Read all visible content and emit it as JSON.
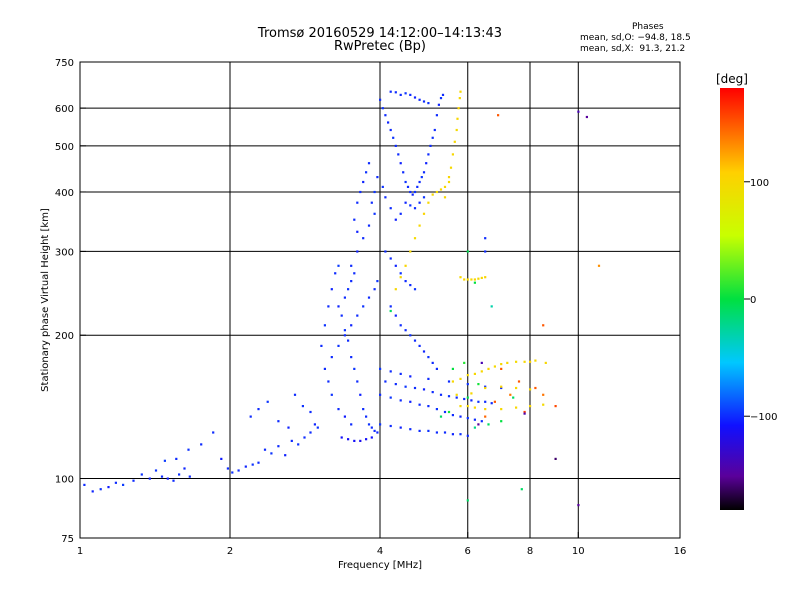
{
  "title_line1": "Tromsø 20160529 14:12:00–14:13:43",
  "title_line2": "RwPretec (Bp)",
  "stats": {
    "heading": "Phases",
    "o_line": "mean, sd,O: −94.8, 18.5",
    "x_line": "mean, sd,X:  91.3, 21.2"
  },
  "colorbar": {
    "label": "[deg]",
    "ticks": [
      {
        "value": 100,
        "label": "100"
      },
      {
        "value": 0,
        "label": "0"
      },
      {
        "value": -100,
        "label": "−100"
      }
    ],
    "range": [
      -180,
      180
    ]
  },
  "chart_data": {
    "type": "scatter",
    "xlabel": "Frequency [MHz]",
    "ylabel": "Stationary phase Virtual Height [km]",
    "xscale": "log",
    "yscale": "log",
    "xlim": [
      1,
      16
    ],
    "ylim": [
      75,
      750
    ],
    "xticks": [
      {
        "value": 1,
        "label": "1"
      },
      {
        "value": 2,
        "label": "2"
      },
      {
        "value": 4,
        "label": "4"
      },
      {
        "value": 6,
        "label": "6"
      },
      {
        "value": 8,
        "label": "8"
      },
      {
        "value": 10,
        "label": "10"
      },
      {
        "value": 16,
        "label": "16"
      }
    ],
    "yticks": [
      {
        "value": 75,
        "label": "75"
      },
      {
        "value": 100,
        "label": "100"
      },
      {
        "value": 200,
        "label": "200"
      },
      {
        "value": 300,
        "label": "300"
      },
      {
        "value": 400,
        "label": "400"
      },
      {
        "value": 500,
        "label": "500"
      },
      {
        "value": 600,
        "label": "600"
      },
      {
        "value": 750,
        "label": "750"
      }
    ],
    "grid_x": [
      2,
      4,
      6,
      8,
      10
    ],
    "grid_y": [
      100,
      200,
      300,
      400,
      500,
      600
    ],
    "points_columns": [
      "frequency_mhz",
      "height_km",
      "phase_deg"
    ],
    "points": [
      [
        1.02,
        97,
        -100
      ],
      [
        1.06,
        94,
        -102
      ],
      [
        1.1,
        95,
        -98
      ],
      [
        1.14,
        96,
        -105
      ],
      [
        1.18,
        98,
        -100
      ],
      [
        1.22,
        97,
        -95
      ],
      [
        1.28,
        99,
        -100
      ],
      [
        1.33,
        102,
        -98
      ],
      [
        1.38,
        100,
        -103
      ],
      [
        1.42,
        104,
        -97
      ],
      [
        1.46,
        101,
        -100
      ],
      [
        1.5,
        100,
        -105
      ],
      [
        1.54,
        99,
        -100
      ],
      [
        1.58,
        102,
        -98
      ],
      [
        1.62,
        105,
        -102
      ],
      [
        1.66,
        101,
        -100
      ],
      [
        1.48,
        109,
        -95
      ],
      [
        1.56,
        110,
        -100
      ],
      [
        1.65,
        115,
        -98
      ],
      [
        1.75,
        118,
        -100
      ],
      [
        1.85,
        125,
        -100
      ],
      [
        1.92,
        110,
        -105
      ],
      [
        1.98,
        105,
        -100
      ],
      [
        2.02,
        103,
        -98
      ],
      [
        2.08,
        104,
        -100
      ],
      [
        2.15,
        106,
        -102
      ],
      [
        2.22,
        107,
        -98
      ],
      [
        2.28,
        108,
        -100
      ],
      [
        2.35,
        115,
        -100
      ],
      [
        2.42,
        113,
        -97
      ],
      [
        2.5,
        117,
        -100
      ],
      [
        2.58,
        112,
        -103
      ],
      [
        2.66,
        120,
        -100
      ],
      [
        2.74,
        118,
        -98
      ],
      [
        2.82,
        122,
        -100
      ],
      [
        2.9,
        125,
        -100
      ],
      [
        2.96,
        130,
        -102
      ],
      [
        3.0,
        128,
        -98
      ],
      [
        2.2,
        135,
        -100
      ],
      [
        2.28,
        140,
        -100
      ],
      [
        2.38,
        145,
        -97
      ],
      [
        2.5,
        132,
        -100
      ],
      [
        2.62,
        128,
        -103
      ],
      [
        2.7,
        150,
        -100
      ],
      [
        2.8,
        142,
        -98
      ],
      [
        2.9,
        138,
        -100
      ],
      [
        3.05,
        190,
        -100
      ],
      [
        3.1,
        210,
        -98
      ],
      [
        3.15,
        230,
        -100
      ],
      [
        3.2,
        250,
        -102
      ],
      [
        3.25,
        270,
        -100
      ],
      [
        3.3,
        280,
        -95
      ],
      [
        3.1,
        170,
        -100
      ],
      [
        3.15,
        160,
        -100
      ],
      [
        3.2,
        150,
        -98
      ],
      [
        3.3,
        140,
        -100
      ],
      [
        3.4,
        135,
        -105
      ],
      [
        3.5,
        130,
        -100
      ],
      [
        3.35,
        122,
        -110
      ],
      [
        3.45,
        121,
        -112
      ],
      [
        3.55,
        120,
        -110
      ],
      [
        3.65,
        120,
        -115
      ],
      [
        3.75,
        121,
        -110
      ],
      [
        3.85,
        122,
        -108
      ],
      [
        3.2,
        180,
        -100
      ],
      [
        3.3,
        190,
        -98
      ],
      [
        3.4,
        200,
        -100
      ],
      [
        3.5,
        210,
        -102
      ],
      [
        3.6,
        220,
        -100
      ],
      [
        3.7,
        230,
        -98
      ],
      [
        3.8,
        240,
        -100
      ],
      [
        3.9,
        250,
        -100
      ],
      [
        3.95,
        260,
        -97
      ],
      [
        3.5,
        280,
        -100
      ],
      [
        3.6,
        300,
        -103
      ],
      [
        3.7,
        320,
        -100
      ],
      [
        3.8,
        340,
        -100
      ],
      [
        3.9,
        360,
        -98
      ],
      [
        3.6,
        380,
        -100
      ],
      [
        3.65,
        400,
        -100
      ],
      [
        3.7,
        420,
        -102
      ],
      [
        3.75,
        440,
        -98
      ],
      [
        3.8,
        460,
        -100
      ],
      [
        3.85,
        380,
        -100
      ],
      [
        3.9,
        400,
        -97
      ],
      [
        3.95,
        430,
        -100
      ],
      [
        3.55,
        350,
        -100
      ],
      [
        3.6,
        330,
        -103
      ],
      [
        3.4,
        240,
        -100
      ],
      [
        3.45,
        250,
        -98
      ],
      [
        3.5,
        260,
        -100
      ],
      [
        3.55,
        270,
        -100
      ],
      [
        3.3,
        230,
        -102
      ],
      [
        3.35,
        220,
        -100
      ],
      [
        3.4,
        205,
        -98
      ],
      [
        3.45,
        195,
        -100
      ],
      [
        3.5,
        180,
        -100
      ],
      [
        3.55,
        170,
        -97
      ],
      [
        3.6,
        160,
        -100
      ],
      [
        3.65,
        150,
        -103
      ],
      [
        3.7,
        140,
        -100
      ],
      [
        3.75,
        135,
        -100
      ],
      [
        3.8,
        130,
        -98
      ],
      [
        3.85,
        128,
        -100
      ],
      [
        3.9,
        126,
        -100
      ],
      [
        3.95,
        125,
        -102
      ],
      [
        4.0,
        625,
        -100
      ],
      [
        4.05,
        600,
        -98
      ],
      [
        4.1,
        580,
        -100
      ],
      [
        4.15,
        560,
        -102
      ],
      [
        4.2,
        540,
        -100
      ],
      [
        4.25,
        520,
        -97
      ],
      [
        4.3,
        500,
        -100
      ],
      [
        4.35,
        480,
        -100
      ],
      [
        4.4,
        460,
        -103
      ],
      [
        4.45,
        440,
        -100
      ],
      [
        4.5,
        420,
        -98
      ],
      [
        4.55,
        410,
        -100
      ],
      [
        4.6,
        400,
        -100
      ],
      [
        4.65,
        395,
        -102
      ],
      [
        4.7,
        400,
        -98
      ],
      [
        4.75,
        410,
        -100
      ],
      [
        4.8,
        420,
        -100
      ],
      [
        4.85,
        430,
        -97
      ],
      [
        4.9,
        440,
        -100
      ],
      [
        4.95,
        460,
        -103
      ],
      [
        5.0,
        480,
        -100
      ],
      [
        5.05,
        500,
        -100
      ],
      [
        5.1,
        520,
        -98
      ],
      [
        5.15,
        540,
        -100
      ],
      [
        5.2,
        580,
        -100
      ],
      [
        5.25,
        610,
        -102
      ],
      [
        5.3,
        630,
        -98
      ],
      [
        5.35,
        640,
        -100
      ],
      [
        4.4,
        640,
        -100
      ],
      [
        4.5,
        645,
        -97
      ],
      [
        4.6,
        640,
        -100
      ],
      [
        4.7,
        632,
        -103
      ],
      [
        4.8,
        625,
        -100
      ],
      [
        4.9,
        620,
        -100
      ],
      [
        5.0,
        615,
        -98
      ],
      [
        4.2,
        650,
        -100
      ],
      [
        4.3,
        648,
        -100
      ],
      [
        4.5,
        380,
        -102
      ],
      [
        4.6,
        375,
        -98
      ],
      [
        4.7,
        370,
        -100
      ],
      [
        4.8,
        380,
        -100
      ],
      [
        4.9,
        390,
        -97
      ],
      [
        4.4,
        360,
        -100
      ],
      [
        4.3,
        350,
        -103
      ],
      [
        4.2,
        370,
        -100
      ],
      [
        4.1,
        390,
        -100
      ],
      [
        4.05,
        410,
        -98
      ],
      [
        4.1,
        300,
        -100
      ],
      [
        4.2,
        290,
        -100
      ],
      [
        4.3,
        280,
        -102
      ],
      [
        4.4,
        270,
        -98
      ],
      [
        4.5,
        260,
        -100
      ],
      [
        4.6,
        255,
        -100
      ],
      [
        4.7,
        250,
        -97
      ],
      [
        4.2,
        230,
        -100
      ],
      [
        4.3,
        220,
        -103
      ],
      [
        4.4,
        210,
        -100
      ],
      [
        4.5,
        205,
        -100
      ],
      [
        4.6,
        200,
        -98
      ],
      [
        4.7,
        195,
        -100
      ],
      [
        4.8,
        190,
        -100
      ],
      [
        4.9,
        185,
        -102
      ],
      [
        5.0,
        180,
        -98
      ],
      [
        5.1,
        175,
        -100
      ],
      [
        5.2,
        170,
        -100
      ],
      [
        4.0,
        150,
        -100
      ],
      [
        4.2,
        148,
        -97
      ],
      [
        4.4,
        146,
        -100
      ],
      [
        4.6,
        145,
        -103
      ],
      [
        4.8,
        143,
        -100
      ],
      [
        5.0,
        142,
        -100
      ],
      [
        5.2,
        140,
        -98
      ],
      [
        5.4,
        138,
        -100
      ],
      [
        5.6,
        136,
        -100
      ],
      [
        5.8,
        135,
        -102
      ],
      [
        6.0,
        134,
        -98
      ],
      [
        6.2,
        133,
        -100
      ],
      [
        6.4,
        132,
        -100
      ],
      [
        4.0,
        130,
        -97
      ],
      [
        4.2,
        129,
        -100
      ],
      [
        4.4,
        128,
        -103
      ],
      [
        4.6,
        127,
        -100
      ],
      [
        4.8,
        126,
        -100
      ],
      [
        5.0,
        126,
        -98
      ],
      [
        5.2,
        125,
        -100
      ],
      [
        5.4,
        125,
        -100
      ],
      [
        5.6,
        124,
        -102
      ],
      [
        5.8,
        124,
        -98
      ],
      [
        6.0,
        123,
        -100
      ],
      [
        4.1,
        160,
        -100
      ],
      [
        4.3,
        158,
        -100
      ],
      [
        4.5,
        156,
        -97
      ],
      [
        4.7,
        155,
        -100
      ],
      [
        4.9,
        154,
        -103
      ],
      [
        5.1,
        152,
        -100
      ],
      [
        5.3,
        150,
        -100
      ],
      [
        5.5,
        149,
        -98
      ],
      [
        5.7,
        148,
        -100
      ],
      [
        5.9,
        147,
        -100
      ],
      [
        6.1,
        146,
        -102
      ],
      [
        6.3,
        145,
        -98
      ],
      [
        6.5,
        145,
        -100
      ],
      [
        6.7,
        144,
        -100
      ],
      [
        4.0,
        170,
        -97
      ],
      [
        4.2,
        168,
        -100
      ],
      [
        4.4,
        166,
        -100
      ],
      [
        4.6,
        164,
        -103
      ],
      [
        5.0,
        162,
        -100
      ],
      [
        5.5,
        160,
        -100
      ],
      [
        6.0,
        158,
        -98
      ],
      [
        6.5,
        156,
        -100
      ],
      [
        7.0,
        155,
        -100
      ],
      [
        4.3,
        250,
        100
      ],
      [
        4.4,
        265,
        98
      ],
      [
        4.5,
        280,
        102
      ],
      [
        4.6,
        300,
        100
      ],
      [
        4.7,
        320,
        97
      ],
      [
        4.8,
        340,
        100
      ],
      [
        4.9,
        360,
        103
      ],
      [
        5.0,
        380,
        100
      ],
      [
        5.1,
        395,
        100
      ],
      [
        5.2,
        400,
        98
      ],
      [
        5.3,
        405,
        100
      ],
      [
        5.4,
        410,
        100
      ],
      [
        5.5,
        430,
        102
      ],
      [
        5.55,
        450,
        98
      ],
      [
        5.6,
        480,
        100
      ],
      [
        5.65,
        510,
        100
      ],
      [
        5.7,
        540,
        97
      ],
      [
        5.72,
        570,
        100
      ],
      [
        5.75,
        600,
        103
      ],
      [
        5.78,
        630,
        100
      ],
      [
        5.8,
        650,
        100
      ],
      [
        5.5,
        420,
        98
      ],
      [
        5.4,
        390,
        100
      ],
      [
        5.8,
        265,
        100
      ],
      [
        5.9,
        262,
        102
      ],
      [
        6.0,
        262,
        98
      ],
      [
        6.1,
        262,
        100
      ],
      [
        6.2,
        262,
        100
      ],
      [
        6.3,
        263,
        97
      ],
      [
        6.4,
        264,
        100
      ],
      [
        6.5,
        265,
        103
      ],
      [
        5.6,
        160,
        100
      ],
      [
        5.8,
        162,
        100
      ],
      [
        6.0,
        165,
        98
      ],
      [
        6.2,
        166,
        100
      ],
      [
        6.4,
        168,
        100
      ],
      [
        6.6,
        170,
        102
      ],
      [
        6.8,
        172,
        98
      ],
      [
        7.0,
        174,
        100
      ],
      [
        7.2,
        175,
        100
      ],
      [
        7.5,
        176,
        97
      ],
      [
        7.8,
        176,
        100
      ],
      [
        8.0,
        176,
        103
      ],
      [
        8.2,
        177,
        100
      ],
      [
        8.6,
        175,
        100
      ],
      [
        5.8,
        142,
        98
      ],
      [
        6.0,
        142,
        100
      ],
      [
        6.2,
        141,
        100
      ],
      [
        6.5,
        140,
        102
      ],
      [
        7.0,
        140,
        98
      ],
      [
        7.5,
        141,
        100
      ],
      [
        8.0,
        142,
        100
      ],
      [
        8.5,
        143,
        97
      ],
      [
        6.5,
        155,
        100
      ],
      [
        7.0,
        156,
        103
      ],
      [
        7.5,
        155,
        100
      ],
      [
        8.0,
        154,
        100
      ],
      [
        5.7,
        150,
        98
      ],
      [
        6.1,
        151,
        100
      ],
      [
        5.6,
        170,
        0
      ],
      [
        6.0,
        148,
        -5
      ],
      [
        6.3,
        158,
        5
      ],
      [
        7.0,
        132,
        0
      ],
      [
        7.4,
        148,
        -10
      ],
      [
        5.9,
        175,
        10
      ],
      [
        6.6,
        130,
        -8
      ],
      [
        5.3,
        135,
        -10
      ],
      [
        5.5,
        138,
        5
      ],
      [
        4.2,
        225,
        -10
      ],
      [
        6.2,
        258,
        0
      ],
      [
        6.8,
        145,
        150
      ],
      [
        7.3,
        150,
        140
      ],
      [
        7.8,
        138,
        160
      ],
      [
        8.2,
        155,
        150
      ],
      [
        6.5,
        135,
        145
      ],
      [
        7.0,
        170,
        150
      ],
      [
        8.5,
        150,
        140
      ],
      [
        9.0,
        142,
        155
      ],
      [
        7.6,
        160,
        150
      ],
      [
        6.9,
        580,
        150
      ],
      [
        8.5,
        210,
        150
      ],
      [
        11.0,
        280,
        130
      ],
      [
        6.4,
        175,
        -140
      ],
      [
        7.8,
        137,
        -145
      ],
      [
        6.3,
        130,
        -150
      ],
      [
        9.0,
        110,
        -160
      ],
      [
        10.0,
        590,
        -140
      ],
      [
        10.4,
        575,
        -150
      ],
      [
        6.0,
        90,
        -10
      ],
      [
        10.0,
        88,
        -150
      ],
      [
        6.2,
        128,
        -20
      ],
      [
        6.0,
        300,
        -5
      ],
      [
        6.7,
        230,
        -30
      ],
      [
        7.7,
        95,
        -10
      ],
      [
        6.5,
        300,
        -100
      ],
      [
        6.5,
        320,
        -100
      ]
    ]
  }
}
